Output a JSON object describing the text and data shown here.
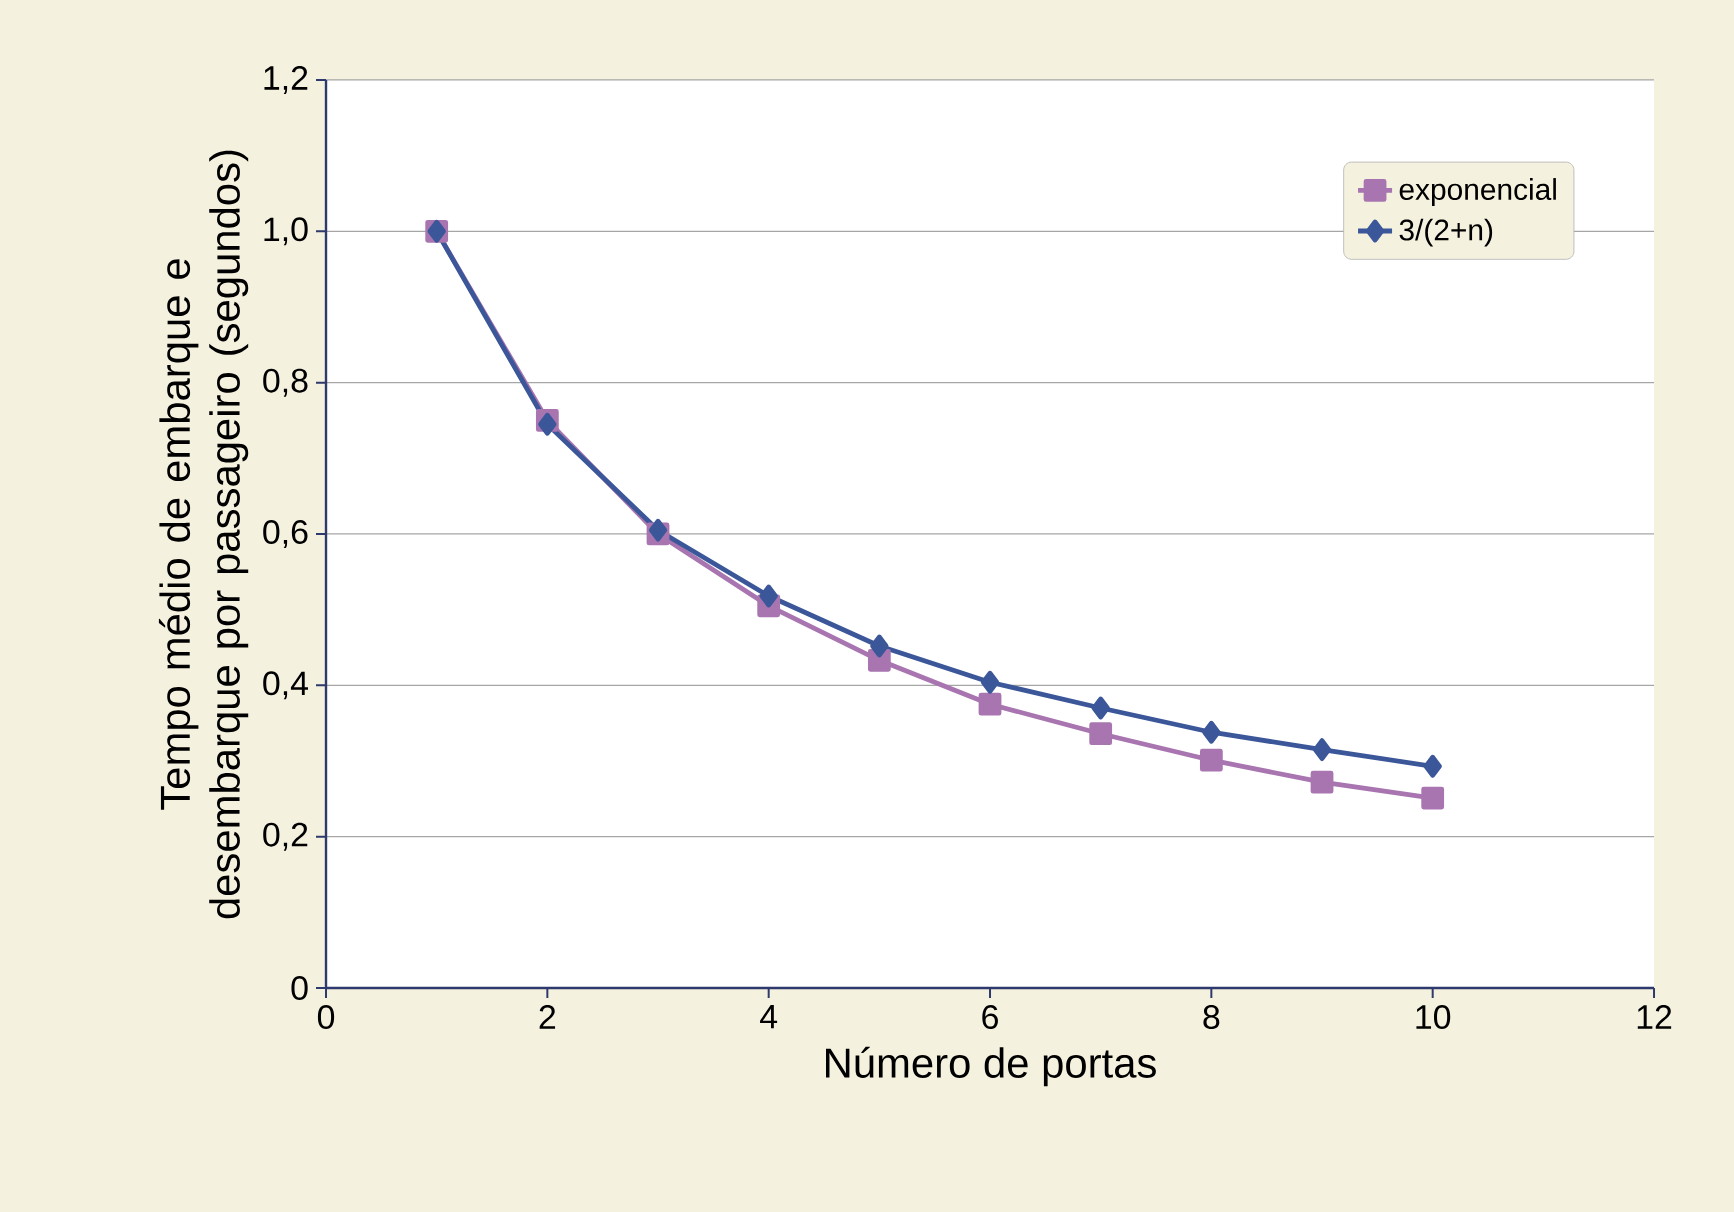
{
  "chart_data": {
    "type": "line",
    "xlabel": "Número de portas",
    "ylabel": "Tempo médio de embarque e desembarque por passageiro (segundos)",
    "x": [
      1,
      2,
      3,
      4,
      5,
      6,
      7,
      8,
      9,
      10
    ],
    "series": [
      {
        "name": "exponencial",
        "color": "#a875b0",
        "marker": "square",
        "values": [
          1.0,
          0.75,
          0.6,
          0.505,
          0.433,
          0.375,
          0.336,
          0.301,
          0.272,
          0.251
        ]
      },
      {
        "name": "3/(2+n)",
        "color": "#3b5799",
        "marker": "diamond",
        "values": [
          1.0,
          0.745,
          0.605,
          0.518,
          0.452,
          0.404,
          0.37,
          0.338,
          0.315,
          0.293
        ]
      }
    ],
    "xlim": [
      0,
      12
    ],
    "xticks": [
      0,
      2,
      4,
      6,
      8,
      10,
      12
    ],
    "ylim": [
      0,
      1.2
    ],
    "yticks": [
      0,
      {
        "value": 0.2,
        "label": "0,2"
      },
      {
        "value": 0.4,
        "label": "0,4"
      },
      {
        "value": 0.6,
        "label": "0,6"
      },
      {
        "value": 0.8,
        "label": "0,8"
      },
      {
        "value": 1.0,
        "label": "1,0"
      },
      {
        "value": 1.2,
        "label": "1,2"
      }
    ],
    "grid": "y",
    "legend": "top right",
    "line_style": "solid"
  }
}
